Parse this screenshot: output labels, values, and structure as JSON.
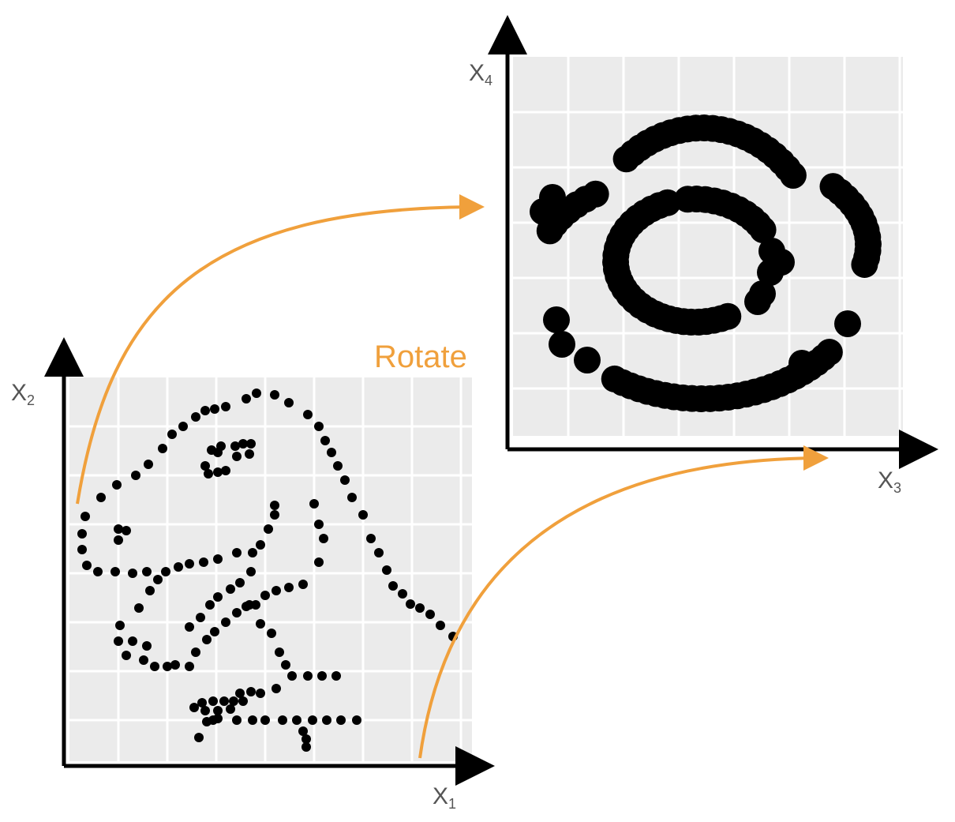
{
  "colors": {
    "accent": "#f0a03c",
    "panel": "#ebebeb",
    "grid": "#ffffff",
    "point": "#000000",
    "axis": "#000000",
    "label": "#555555"
  },
  "annotation": {
    "rotate_label": "Rotate"
  },
  "panels": {
    "original": {
      "x_axis": {
        "letter": "X",
        "subscript": "1"
      },
      "y_axis": {
        "letter": "X",
        "subscript": "2"
      }
    },
    "rotated": {
      "x_axis": {
        "letter": "X",
        "subscript": "3"
      },
      "y_axis": {
        "letter": "X",
        "subscript": "4"
      }
    }
  },
  "arrows": [
    {
      "name": "upper-rotate-arrow-icon"
    },
    {
      "name": "lower-rotate-arrow-icon"
    }
  ]
}
